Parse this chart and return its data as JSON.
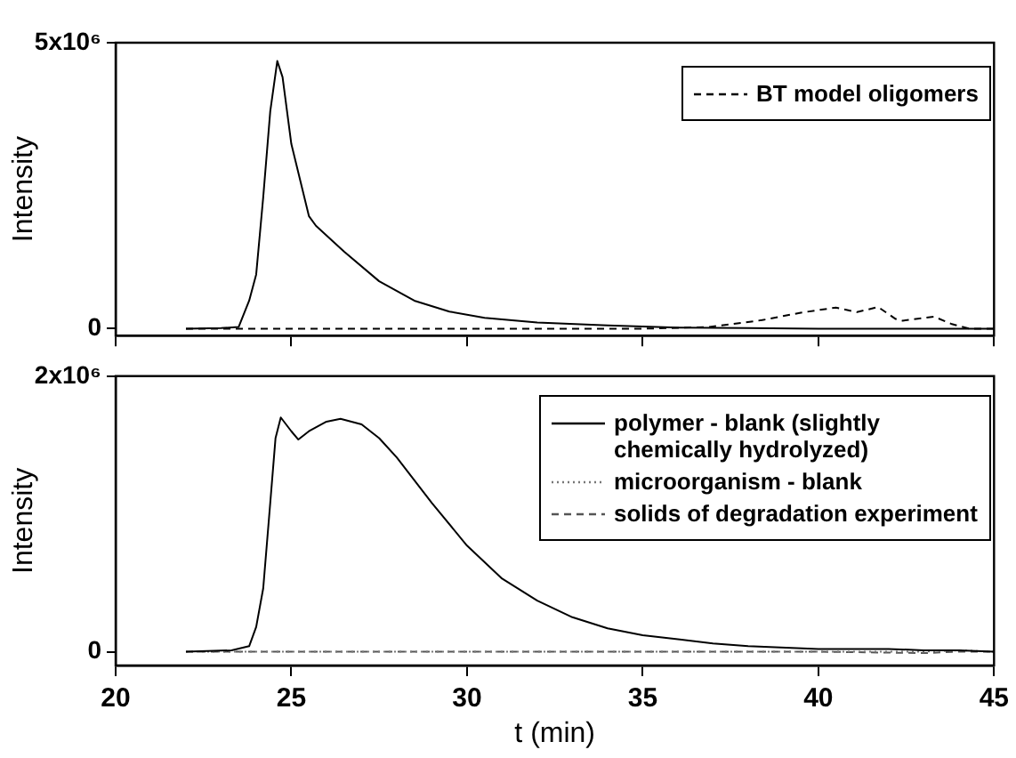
{
  "chart_data": [
    {
      "type": "line",
      "ylabel": "Intensity",
      "xlim": [
        20,
        45
      ],
      "xticks": [
        20,
        25,
        30,
        35,
        40,
        45
      ],
      "ylim": [
        -120000,
        5000000
      ],
      "yticks": [
        0,
        {
          "value": 5000000,
          "label": "5x10⁶"
        }
      ],
      "tick_labels": "y",
      "grid": false,
      "legend": "top right",
      "marker": "none",
      "series": [
        {
          "color": "#000000",
          "line_style": "solid",
          "x": [
            22,
            23,
            23.5,
            23.8,
            24,
            24.2,
            24.4,
            24.6,
            24.75,
            25,
            25.5,
            25.7,
            26.5,
            27.5,
            28.5,
            29.5,
            30.5,
            32,
            34,
            36,
            38,
            40,
            42,
            43.5,
            45
          ],
          "values": [
            0,
            10000,
            30000,
            490000,
            950000,
            2300000,
            3800000,
            4680000,
            4400000,
            3230000,
            1970000,
            1800000,
            1350000,
            830000,
            490000,
            300000,
            190000,
            110000,
            60000,
            20000,
            10000,
            0,
            0,
            0,
            0
          ]
        },
        {
          "name": "BT model oligomers",
          "color": "#000000",
          "line_style": "dashed",
          "x": [
            22,
            30,
            35,
            36.9,
            38.4,
            39.5,
            40.5,
            41.1,
            41.7,
            42.2,
            42.4,
            43.3,
            43.8,
            44.3,
            45
          ],
          "values": [
            0,
            0,
            0,
            30000,
            150000,
            280000,
            370000,
            290000,
            380000,
            170000,
            140000,
            210000,
            80000,
            0,
            0
          ]
        }
      ]
    },
    {
      "type": "line",
      "xlabel": "t (min)",
      "ylabel": "Intensity",
      "xlim": [
        20,
        45
      ],
      "xticks": [
        20,
        25,
        30,
        35,
        40,
        45
      ],
      "ylim": [
        -100000,
        2000000
      ],
      "yticks": [
        0,
        {
          "value": 2000000,
          "label": "2x10⁶"
        }
      ],
      "grid": false,
      "legend": "top right",
      "marker": "none",
      "series": [
        {
          "name": "polymer - blank (slightly chemically hydrolyzed)",
          "color": "#000000",
          "line_style": "solid",
          "x": [
            22,
            23.3,
            23.8,
            24,
            24.2,
            24.4,
            24.55,
            24.7,
            25,
            25.2,
            25.5,
            26,
            26.4,
            27,
            27.5,
            28,
            29,
            30,
            31,
            32,
            33,
            34,
            35,
            36,
            37,
            38,
            40,
            42,
            43,
            44,
            45
          ],
          "values": [
            0,
            10000,
            40000,
            180000,
            460000,
            1080000,
            1550000,
            1700000,
            1600000,
            1540000,
            1600000,
            1670000,
            1690000,
            1650000,
            1550000,
            1410000,
            1080000,
            770000,
            530000,
            370000,
            250000,
            170000,
            120000,
            90000,
            60000,
            40000,
            20000,
            20000,
            10000,
            10000,
            0
          ]
        },
        {
          "name": "microorganism - blank",
          "color": "#777777",
          "line_style": "dotted",
          "x": [
            22,
            30,
            40,
            43,
            44,
            45
          ],
          "values": [
            0,
            0,
            0,
            0,
            10000,
            0
          ]
        },
        {
          "name": "solids of degradation experiment",
          "color": "#555555",
          "line_style": "dashed",
          "x": [
            22,
            30,
            40,
            43,
            44,
            45
          ],
          "values": [
            0,
            0,
            0,
            -10000,
            0,
            0
          ]
        }
      ]
    }
  ]
}
